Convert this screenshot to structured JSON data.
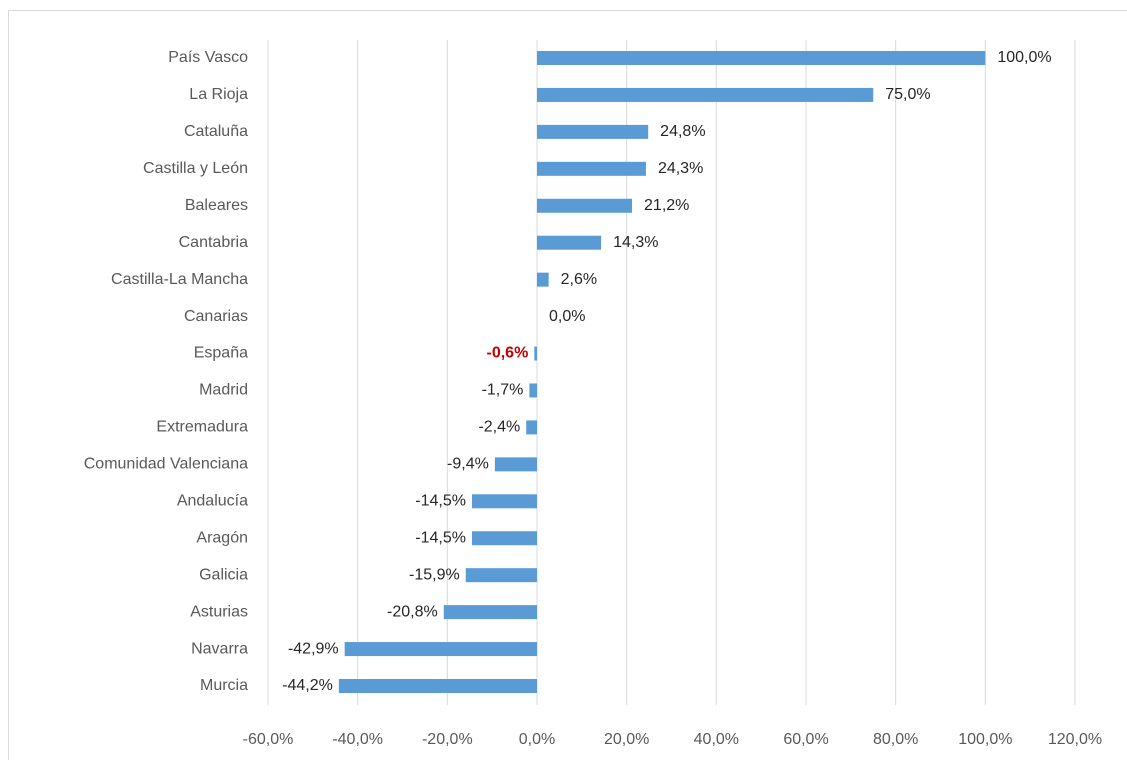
{
  "chart_data": {
    "type": "bar",
    "orientation": "horizontal",
    "color": "#5b9bd5",
    "categories": [
      "País Vasco",
      "La Rioja",
      "Cataluña",
      "Castilla y León",
      "Baleares",
      "Cantabria",
      "Castilla-La Mancha",
      "Canarias",
      "España",
      "Madrid",
      "Extremadura",
      "Comunidad Valenciana",
      "Andalucía",
      "Aragón",
      "Galicia",
      "Asturias",
      "Navarra",
      "Murcia"
    ],
    "values": [
      100,
      75,
      24.8,
      24.3,
      21.2,
      14.3,
      2.6,
      0,
      -0.6,
      -1.7,
      -2.4,
      -9.4,
      -14.5,
      -14.5,
      -15.9,
      -20.8,
      -42.9,
      -44.2
    ],
    "value_labels": [
      "100,0%",
      "75,0%",
      "24,8%",
      "24,3%",
      "21,2%",
      "14,3%",
      "2,6%",
      "0,0%",
      "-0,6%",
      "-1,7%",
      "-2,4%",
      "-9,4%",
      "-14,5%",
      "-14,5%",
      "-15,9%",
      "-20,8%",
      "-42,9%",
      "-44,2%"
    ],
    "highlight": {
      "category": "España",
      "color": "#c00000"
    },
    "xlim": [
      -60,
      120
    ],
    "xticks": [
      {
        "value": -60,
        "label": "-60,0%"
      },
      {
        "value": -40,
        "label": "-40,0%"
      },
      {
        "value": -20,
        "label": "-20,0%"
      },
      {
        "value": 0,
        "label": "0,0%"
      },
      {
        "value": 20,
        "label": "20,0%"
      },
      {
        "value": 40,
        "label": "40,0%"
      },
      {
        "value": 60,
        "label": "60,0%"
      },
      {
        "value": 80,
        "label": "80,0%"
      },
      {
        "value": 100,
        "label": "100,0%"
      },
      {
        "value": 120,
        "label": "120,0%"
      }
    ],
    "grid": true
  }
}
